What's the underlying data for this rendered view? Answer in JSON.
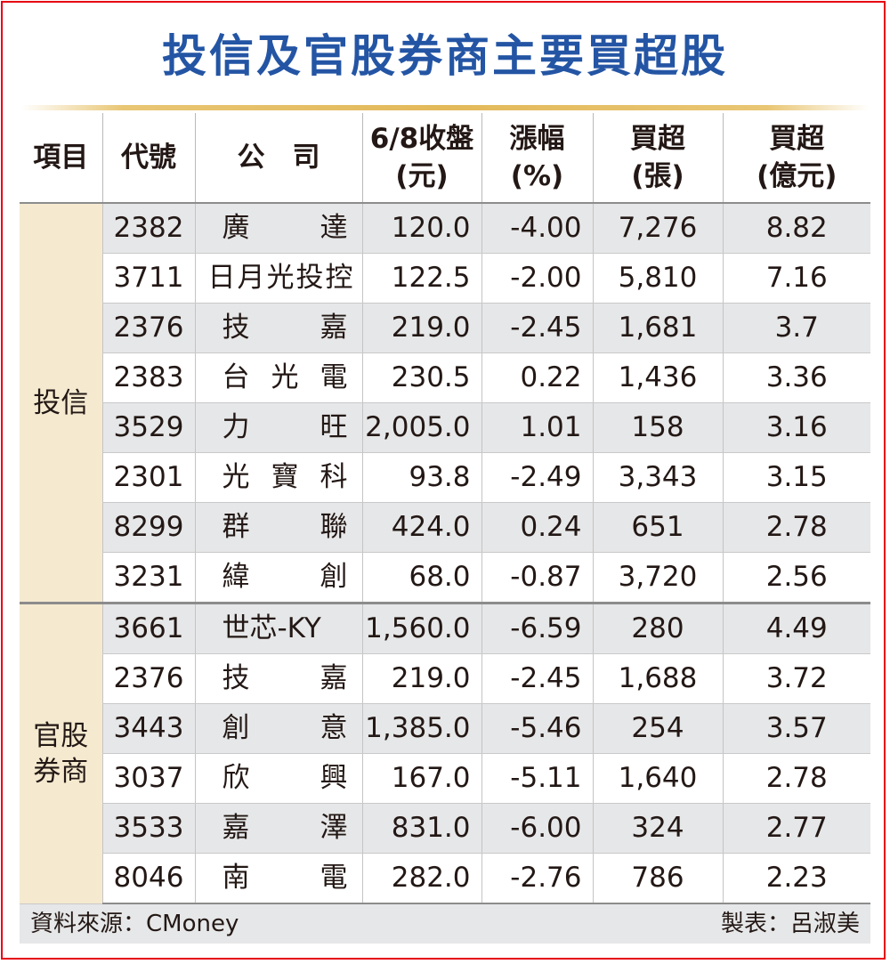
{
  "title": "投信及官股券商主要買超股",
  "headers": {
    "item": "項目",
    "code": "代號",
    "company": "公　司",
    "close_line1": "6/8收盤",
    "close_line2": "(元)",
    "change_line1": "漲幅",
    "change_line2": "(%)",
    "lots_line1": "買超",
    "lots_line2": "(張)",
    "amount_line1": "買超",
    "amount_line2": "(億元)"
  },
  "groups": [
    {
      "label": "投信",
      "rows": [
        {
          "code": "2382",
          "name": "廣達",
          "close": "120.0",
          "change": "-4.00",
          "lots": "7,276",
          "amount": "8.82"
        },
        {
          "code": "3711",
          "name": "日月光投控",
          "close": "122.5",
          "change": "-2.00",
          "lots": "5,810",
          "amount": "7.16"
        },
        {
          "code": "2376",
          "name": "技嘉",
          "close": "219.0",
          "change": "-2.45",
          "lots": "1,681",
          "amount": "3.7"
        },
        {
          "code": "2383",
          "name": "台光電",
          "close": "230.5",
          "change": "0.22",
          "lots": "1,436",
          "amount": "3.36"
        },
        {
          "code": "3529",
          "name": "力旺",
          "close": "2,005.0",
          "change": "1.01",
          "lots": "158",
          "amount": "3.16"
        },
        {
          "code": "2301",
          "name": "光寶科",
          "close": "93.8",
          "change": "-2.49",
          "lots": "3,343",
          "amount": "3.15"
        },
        {
          "code": "8299",
          "name": "群聯",
          "close": "424.0",
          "change": "0.24",
          "lots": "651",
          "amount": "2.78"
        },
        {
          "code": "3231",
          "name": "緯創",
          "close": "68.0",
          "change": "-0.87",
          "lots": "3,720",
          "amount": "2.56"
        }
      ]
    },
    {
      "label_line1": "官股",
      "label_line2": "券商",
      "rows": [
        {
          "code": "3661",
          "name": "世芯-KY",
          "close": "1,560.0",
          "change": "-6.59",
          "lots": "280",
          "amount": "4.49"
        },
        {
          "code": "2376",
          "name": "技嘉",
          "close": "219.0",
          "change": "-2.45",
          "lots": "1,688",
          "amount": "3.72"
        },
        {
          "code": "3443",
          "name": "創意",
          "close": "1,385.0",
          "change": "-5.46",
          "lots": "254",
          "amount": "3.57"
        },
        {
          "code": "3037",
          "name": "欣興",
          "close": "167.0",
          "change": "-5.11",
          "lots": "1,640",
          "amount": "2.78"
        },
        {
          "code": "3533",
          "name": "嘉澤",
          "close": "831.0",
          "change": "-6.00",
          "lots": "324",
          "amount": "2.77"
        },
        {
          "code": "8046",
          "name": "南電",
          "close": "282.0",
          "change": "-2.76",
          "lots": "786",
          "amount": "2.23"
        }
      ]
    }
  ],
  "footer": {
    "source": "資料來源：CMoney",
    "maker": "製表：呂淑美"
  },
  "colors": {
    "title": "#2455a4",
    "frame": "#e60012",
    "row_shade": "#e6e7e8",
    "group_bg": "#f5ead0",
    "gold_rule": "#e3b95a"
  }
}
